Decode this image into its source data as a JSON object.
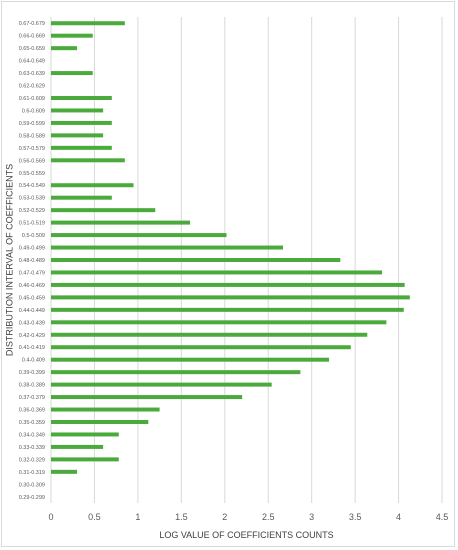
{
  "chart_data": {
    "type": "bar",
    "orientation": "horizontal",
    "title": "",
    "xlabel": "LOG VALUE OF COEFFICIENTS COUNTS",
    "ylabel": "DISTRIBUTION INTERVAL OF COEFFICIENTS",
    "xlim": [
      0,
      4.5
    ],
    "xticks": [
      "0",
      "0.5",
      "1",
      "1.5",
      "2",
      "2.5",
      "3",
      "3.5",
      "4",
      "4.5"
    ],
    "grid": "vertical",
    "legend": "none",
    "bar_color": "#4aab3c",
    "categories": [
      "0.67-0.679",
      "0.66-0.669",
      "0.65-0.659",
      "0.64-0.649",
      "0.63-0.639",
      "0.62-0.629",
      "0.61-0.609",
      "0.6-0.609",
      "0.59-0.599",
      "0.58-0.589",
      "0.57-0.579",
      "0.56-0.569",
      "0.55-0.559",
      "0.54-0.549",
      "0.53-0.539",
      "0.52-0.529",
      "0.51-0.519",
      "0.5-0.509",
      "0.49-0.499",
      "0.48-0.489",
      "0.47-0.479",
      "0.46-0.469",
      "0.45-0.459",
      "0.44-0.449",
      "0.43-0.439",
      "0.42-0.429",
      "0.41-0.419",
      "0.4-0.409",
      "0.39-0.399",
      "0.38-0.389",
      "0.37-0.379",
      "0.36-0.369",
      "0.35-0.359",
      "0.34-0.349",
      "0.33-0.339",
      "0.32-0.329",
      "0.31-0.319",
      "0.30-0.309",
      "0.29-0.299"
    ],
    "values": [
      0.85,
      0.48,
      0.3,
      0,
      0.48,
      0,
      0.7,
      0.6,
      0.7,
      0.6,
      0.7,
      0.85,
      0,
      0.95,
      0.7,
      1.2,
      1.6,
      2.02,
      2.67,
      3.33,
      3.81,
      4.07,
      4.13,
      4.06,
      3.86,
      3.64,
      3.45,
      3.2,
      2.87,
      2.54,
      2.2,
      1.25,
      1.12,
      0.78,
      0.6,
      0.78,
      0.3,
      0,
      0
    ]
  }
}
